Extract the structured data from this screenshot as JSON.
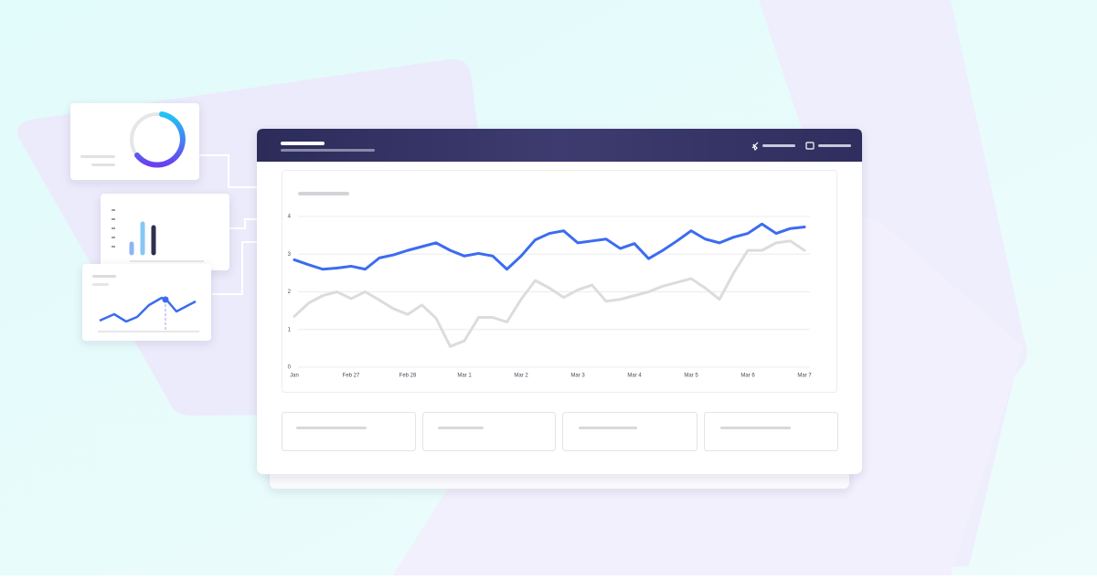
{
  "chart_data": {
    "type": "line",
    "categories": [
      "Jan",
      null,
      null,
      null,
      "Feb 27",
      null,
      null,
      null,
      "Feb 28",
      null,
      null,
      null,
      "Mar 1",
      null,
      null,
      null,
      "Mar 2",
      null,
      null,
      null,
      "Mar 3",
      null,
      null,
      null,
      "Mar 4",
      null,
      null,
      null,
      "Mar 5",
      null,
      null,
      null,
      "Mar 6",
      null,
      null,
      null,
      "Mar 7"
    ],
    "series": [
      {
        "color": "#3b6cf0",
        "values": [
          2.85,
          2.72,
          2.6,
          2.63,
          2.68,
          2.6,
          2.9,
          2.98,
          3.1,
          3.2,
          3.3,
          3.1,
          2.95,
          3.02,
          2.95,
          2.6,
          2.95,
          3.38,
          3.55,
          3.62,
          3.3,
          3.35,
          3.4,
          3.15,
          3.28,
          2.88,
          3.1,
          3.35,
          3.62,
          3.4,
          3.3,
          3.45,
          3.55,
          3.8,
          3.55,
          3.68,
          3.72
        ]
      },
      {
        "color": "#dcdcdc",
        "values": [
          1.35,
          1.7,
          1.9,
          2.0,
          1.82,
          2.0,
          1.78,
          1.55,
          1.4,
          1.65,
          1.3,
          0.55,
          0.7,
          1.32,
          1.32,
          1.2,
          1.8,
          2.3,
          2.1,
          1.85,
          2.05,
          2.18,
          1.75,
          1.8,
          1.9,
          2.0,
          2.15,
          2.25,
          2.35,
          2.1,
          1.8,
          2.5,
          3.1,
          3.1,
          3.3,
          3.35,
          3.1
        ]
      }
    ],
    "ylim": [
      0,
      4
    ],
    "yticks": [
      0,
      1,
      2,
      3,
      4
    ],
    "grid": true
  }
}
